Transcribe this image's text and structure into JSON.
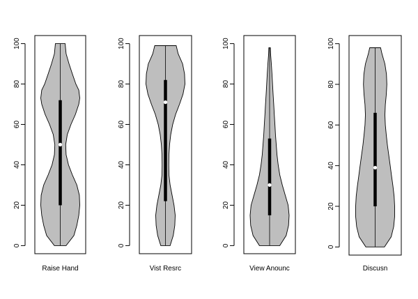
{
  "chart_data": [
    {
      "type": "violin",
      "category": "Raise Hand",
      "ylim": [
        0,
        100
      ],
      "yticks": [
        0,
        20,
        40,
        60,
        80,
        100
      ],
      "median": 50,
      "q1": 20,
      "q3": 72,
      "min": 0,
      "max": 100,
      "density": [
        [
          0,
          0.3
        ],
        [
          5,
          0.7
        ],
        [
          10,
          0.85
        ],
        [
          15,
          0.95
        ],
        [
          20,
          1.0
        ],
        [
          25,
          0.98
        ],
        [
          30,
          0.85
        ],
        [
          35,
          0.62
        ],
        [
          40,
          0.42
        ],
        [
          45,
          0.3
        ],
        [
          50,
          0.28
        ],
        [
          55,
          0.36
        ],
        [
          60,
          0.55
        ],
        [
          65,
          0.78
        ],
        [
          70,
          0.95
        ],
        [
          73,
          1.0
        ],
        [
          77,
          0.95
        ],
        [
          80,
          0.8
        ],
        [
          85,
          0.62
        ],
        [
          90,
          0.45
        ],
        [
          95,
          0.3
        ],
        [
          100,
          0.25
        ]
      ]
    },
    {
      "type": "violin",
      "category": "Vist Resrc",
      "ylim": [
        0,
        100
      ],
      "yticks": [
        0,
        20,
        40,
        60,
        80,
        100
      ],
      "median": 71,
      "q1": 22,
      "q3": 82,
      "min": 0,
      "max": 99,
      "density": [
        [
          0,
          0.24
        ],
        [
          5,
          0.4
        ],
        [
          10,
          0.48
        ],
        [
          15,
          0.5
        ],
        [
          20,
          0.44
        ],
        [
          25,
          0.34
        ],
        [
          30,
          0.24
        ],
        [
          35,
          0.18
        ],
        [
          40,
          0.17
        ],
        [
          45,
          0.18
        ],
        [
          50,
          0.21
        ],
        [
          55,
          0.27
        ],
        [
          60,
          0.37
        ],
        [
          65,
          0.52
        ],
        [
          70,
          0.72
        ],
        [
          75,
          0.9
        ],
        [
          80,
          1.0
        ],
        [
          85,
          0.98
        ],
        [
          90,
          0.88
        ],
        [
          95,
          0.65
        ],
        [
          99,
          0.55
        ]
      ]
    },
    {
      "type": "violin",
      "category": "View Anounc",
      "ylim": [
        0,
        100
      ],
      "yticks": [
        0,
        20,
        40,
        60,
        80,
        100
      ],
      "median": 30,
      "q1": 15,
      "q3": 53,
      "min": 0,
      "max": 98,
      "density": [
        [
          0,
          0.52
        ],
        [
          5,
          0.85
        ],
        [
          10,
          0.97
        ],
        [
          15,
          1.0
        ],
        [
          20,
          0.95
        ],
        [
          25,
          0.8
        ],
        [
          30,
          0.65
        ],
        [
          35,
          0.52
        ],
        [
          40,
          0.44
        ],
        [
          45,
          0.38
        ],
        [
          50,
          0.34
        ],
        [
          55,
          0.3
        ],
        [
          60,
          0.27
        ],
        [
          65,
          0.24
        ],
        [
          70,
          0.21
        ],
        [
          75,
          0.18
        ],
        [
          80,
          0.15
        ],
        [
          85,
          0.12
        ],
        [
          90,
          0.09
        ],
        [
          95,
          0.05
        ],
        [
          98,
          0.04
        ]
      ]
    },
    {
      "type": "violin",
      "category": "Discusn",
      "ylim": [
        0,
        100
      ],
      "yticks": [
        0,
        20,
        40,
        60,
        80,
        100
      ],
      "median": 39,
      "q1": 20,
      "q3": 66,
      "min": 0,
      "max": 98,
      "density": [
        [
          0,
          0.48
        ],
        [
          5,
          0.82
        ],
        [
          10,
          0.95
        ],
        [
          15,
          1.0
        ],
        [
          20,
          1.0
        ],
        [
          25,
          0.97
        ],
        [
          30,
          0.91
        ],
        [
          35,
          0.84
        ],
        [
          40,
          0.77
        ],
        [
          45,
          0.7
        ],
        [
          50,
          0.63
        ],
        [
          55,
          0.57
        ],
        [
          60,
          0.52
        ],
        [
          65,
          0.5
        ],
        [
          70,
          0.52
        ],
        [
          75,
          0.57
        ],
        [
          80,
          0.6
        ],
        [
          85,
          0.58
        ],
        [
          90,
          0.5
        ],
        [
          95,
          0.35
        ],
        [
          98,
          0.28
        ]
      ]
    }
  ],
  "colors": {
    "violin_fill": "#bebebe",
    "stroke": "#000000",
    "median_dot": "#ffffff",
    "background": "#ffffff"
  }
}
